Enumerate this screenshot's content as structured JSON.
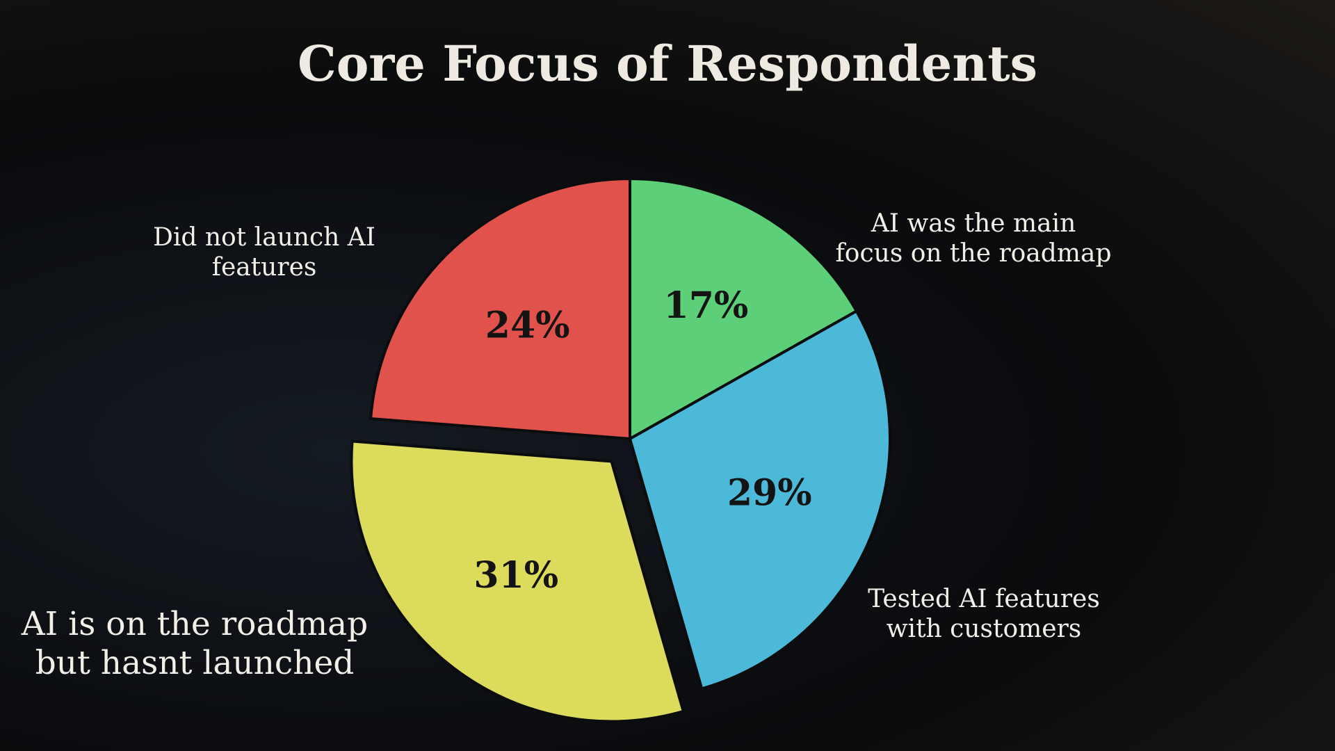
{
  "chart_data": {
    "type": "pie",
    "title": "Core Focus of Respondents",
    "categories": [
      "AI was the main focus on the roadmap",
      "Tested AI features with customers",
      "AI is on the roadmap but hasnt launched",
      "Did not launch AI features"
    ],
    "values": [
      17,
      29,
      31,
      24
    ],
    "value_labels": [
      "17%",
      "29%",
      "31%",
      "24%"
    ],
    "colors": [
      "#5dcf79",
      "#4cb9d9",
      "#dcdb5c",
      "#e1524d"
    ],
    "exploded": [
      false,
      false,
      true,
      false
    ]
  }
}
